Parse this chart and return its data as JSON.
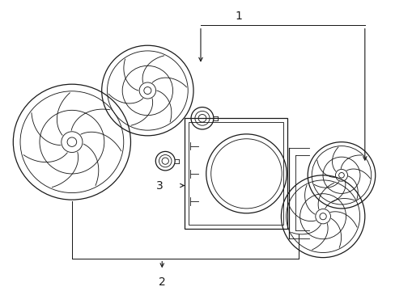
{
  "bg_color": "#ffffff",
  "line_color": "#1a1a1a",
  "lw_main": 0.9,
  "lw_thin": 0.55,
  "label_1": "1",
  "label_2": "2",
  "label_3": "3",
  "label_fontsize": 10,
  "fig_width": 4.89,
  "fig_height": 3.6,
  "dpi": 100
}
